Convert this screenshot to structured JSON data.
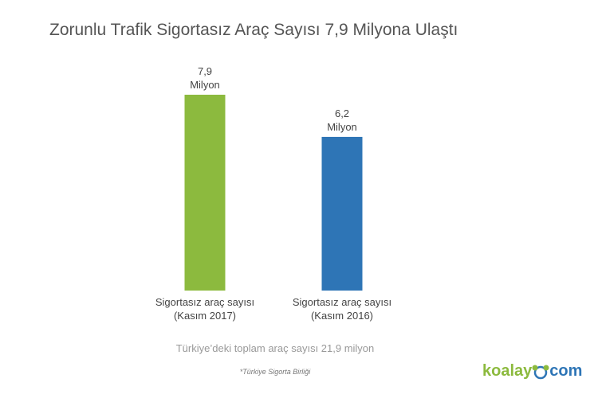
{
  "chart_data": {
    "type": "bar",
    "title": "Zorunlu Trafik Sigortasız Araç Sayısı 7,9 Milyona Ulaştı",
    "categories": [
      "Sigortasız araç sayısı\n(Kasım 2017)",
      "Sigortasız araç sayısı\n(Kasım 2016)"
    ],
    "values": [
      7.9,
      6.2
    ],
    "value_labels": [
      "7,9\nMilyon",
      "6,2\nMilyon"
    ],
    "colors": [
      "#8cba3e",
      "#2e75b6"
    ],
    "note": "Türkiye’deki toplam araç sayısı 21,9 milyon",
    "source": "*Türkiye Sigorta Birliği",
    "logo": {
      "left": "koalay",
      "right": "com"
    }
  }
}
